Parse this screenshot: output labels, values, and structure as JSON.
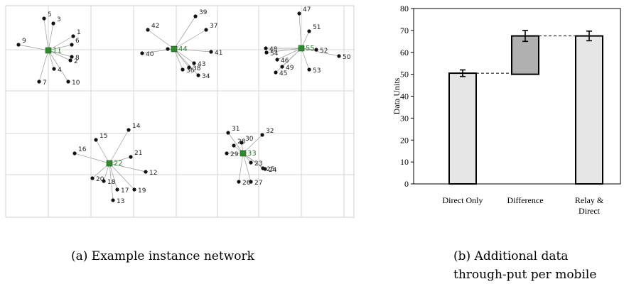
{
  "captions": {
    "a": "(a) Example instance network",
    "b": "(b) Additional data through-put per mobile"
  },
  "network": {
    "hub_color": "#2e8b2e",
    "node_color": "#111111",
    "clusters": [
      {
        "hub": "11",
        "nodes": [
          "5",
          "3",
          "1",
          "6",
          "8",
          "2",
          "10",
          "4",
          "7",
          "9"
        ]
      },
      {
        "hub": "44",
        "nodes": [
          "39",
          "37",
          "42",
          "40",
          "3",
          "41",
          "43",
          "38",
          "36",
          "34"
        ]
      },
      {
        "hub": "55",
        "nodes": [
          "47",
          "51",
          "48",
          "54",
          "52",
          "50",
          "46",
          "49",
          "45",
          "53"
        ]
      },
      {
        "hub": "22",
        "nodes": [
          "14",
          "15",
          "16",
          "21",
          "12",
          "20",
          "18",
          "17",
          "19",
          "13"
        ]
      },
      {
        "hub": "33",
        "nodes": [
          "31",
          "32",
          "28",
          "30",
          "29",
          "23",
          "25",
          "24",
          "26",
          "27"
        ]
      }
    ]
  },
  "chart_data": {
    "type": "bar",
    "categories": [
      "Direct Only",
      "Difference",
      "Relay &\nDirect"
    ],
    "values": [
      50.5,
      67.5,
      67.5
    ],
    "bar_bottoms": [
      0,
      50,
      0
    ],
    "errors": [
      1.5,
      2.5,
      2.2
    ],
    "colors": [
      "#e6e6e6",
      "#b0b0b0",
      "#e6e6e6"
    ],
    "ylabel": "Data Units",
    "ylim": [
      0,
      80
    ],
    "yticks": [
      0,
      10,
      20,
      30,
      40,
      50,
      60,
      70,
      80
    ],
    "grid": false
  }
}
